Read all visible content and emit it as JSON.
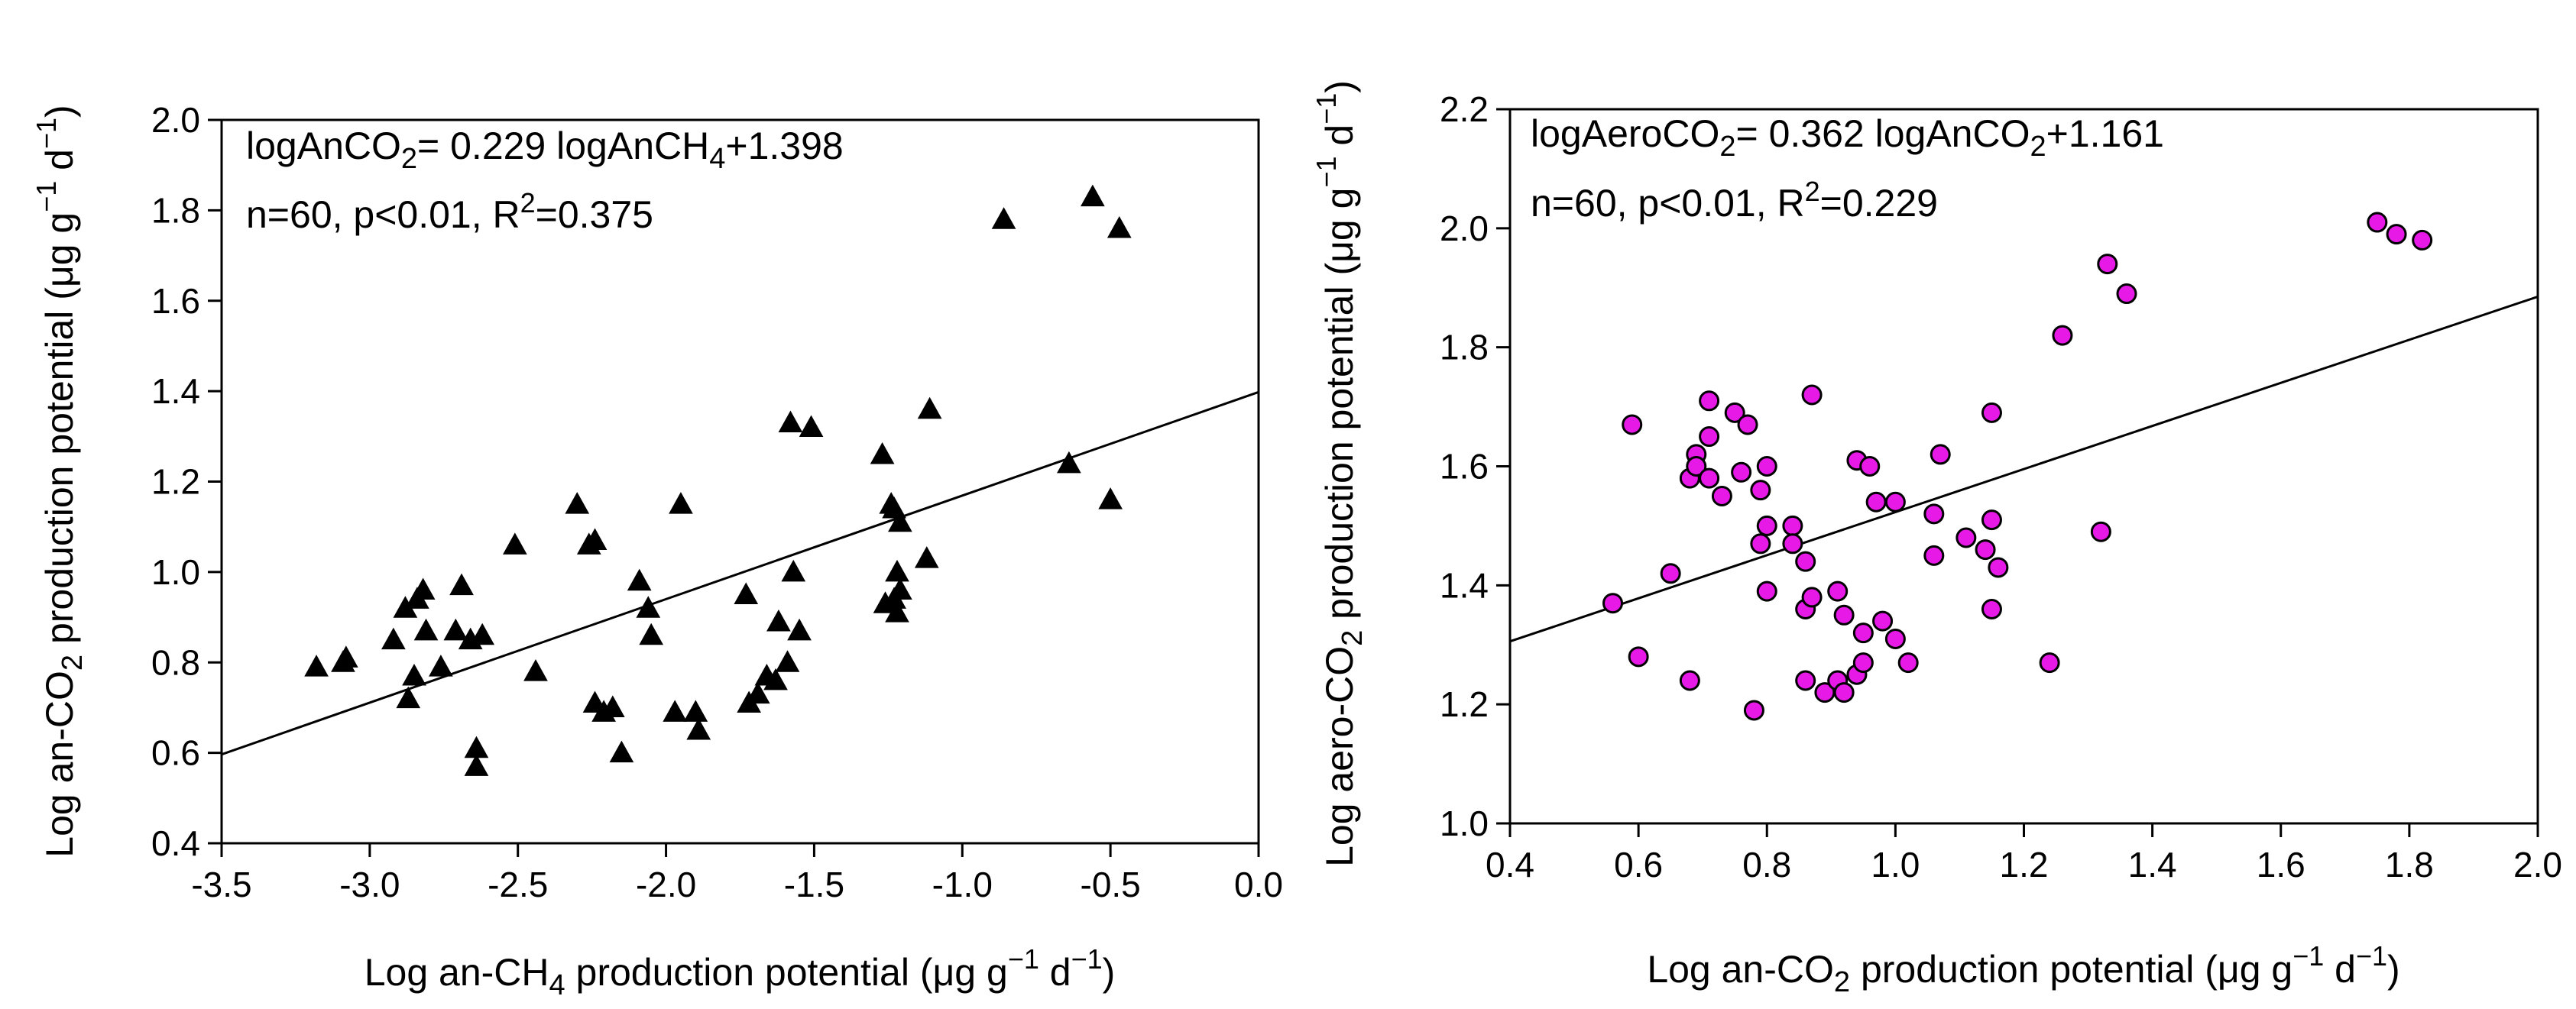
{
  "chart_data": [
    {
      "type": "scatter",
      "marker": "triangle",
      "marker_color": "#000000",
      "xlabel": "Log an-CH4 production potential (μg g−1 d−1)",
      "ylabel": "Log an-CO2 production potential (μg g−1 d−1)",
      "xlim": [
        -3.5,
        0.0
      ],
      "ylim": [
        0.4,
        2.0
      ],
      "x_ticks": [
        -3.5,
        -3.0,
        -2.5,
        -2.0,
        -1.5,
        -1.0,
        -0.5,
        0.0
      ],
      "y_ticks": [
        0.4,
        0.6,
        0.8,
        1.0,
        1.2,
        1.4,
        1.6,
        1.8,
        2.0
      ],
      "x_tick_labels": [
        "-3.5",
        "-3.0",
        "-2.5",
        "-2.0",
        "-1.5",
        "-1.0",
        "-0.5",
        "0.0"
      ],
      "y_tick_labels": [
        "0.4",
        "0.6",
        "0.8",
        "1.0",
        "1.2",
        "1.4",
        "1.6",
        "1.8",
        "2.0"
      ],
      "fit": {
        "slope": 0.229,
        "intercept": 1.398
      },
      "annotation": {
        "eq_lhs": "logAnCO",
        "eq_lhs_sub": "2",
        "eq_mid": "= 0.229 logAnCH",
        "eq_mid_sub": "4",
        "eq_rhs": "+1.398",
        "stats_text": "n=60, p<0.01, R",
        "stats_sup": "2",
        "stats_tail": "=0.375"
      },
      "points": [
        [
          -3.18,
          0.79
        ],
        [
          -3.09,
          0.8
        ],
        [
          -3.08,
          0.81
        ],
        [
          -2.92,
          0.85
        ],
        [
          -2.88,
          0.92
        ],
        [
          -2.87,
          0.72
        ],
        [
          -2.85,
          0.77
        ],
        [
          -2.84,
          0.94
        ],
        [
          -2.82,
          0.96
        ],
        [
          -2.81,
          0.87
        ],
        [
          -2.76,
          0.79
        ],
        [
          -2.71,
          0.87
        ],
        [
          -2.69,
          0.97
        ],
        [
          -2.66,
          0.85
        ],
        [
          -2.64,
          0.61
        ],
        [
          -2.64,
          0.57
        ],
        [
          -2.62,
          0.86
        ],
        [
          -2.51,
          1.06
        ],
        [
          -2.44,
          0.78
        ],
        [
          -2.3,
          1.15
        ],
        [
          -2.26,
          1.06
        ],
        [
          -2.24,
          1.07
        ],
        [
          -2.24,
          0.71
        ],
        [
          -2.21,
          0.69
        ],
        [
          -2.18,
          0.7
        ],
        [
          -2.15,
          0.6
        ],
        [
          -2.09,
          0.98
        ],
        [
          -2.06,
          0.92
        ],
        [
          -2.05,
          0.86
        ],
        [
          -1.95,
          1.15
        ],
        [
          -1.97,
          0.69
        ],
        [
          -1.9,
          0.69
        ],
        [
          -1.89,
          0.65
        ],
        [
          -1.73,
          0.95
        ],
        [
          -1.72,
          0.71
        ],
        [
          -1.69,
          0.73
        ],
        [
          -1.66,
          0.77
        ],
        [
          -1.63,
          0.76
        ],
        [
          -1.62,
          0.89
        ],
        [
          -1.59,
          0.8
        ],
        [
          -1.58,
          1.33
        ],
        [
          -1.57,
          1.0
        ],
        [
          -1.55,
          0.87
        ],
        [
          -1.51,
          1.32
        ],
        [
          -1.27,
          1.26
        ],
        [
          -1.26,
          0.93
        ],
        [
          -1.23,
          0.94
        ],
        [
          -1.23,
          1.14
        ],
        [
          -1.22,
          1.0
        ],
        [
          -1.22,
          0.91
        ],
        [
          -1.21,
          0.96
        ],
        [
          -1.21,
          1.11
        ],
        [
          -1.12,
          1.03
        ],
        [
          -1.11,
          1.36
        ],
        [
          -0.86,
          1.78
        ],
        [
          -0.64,
          1.24
        ],
        [
          -0.56,
          1.83
        ],
        [
          -0.5,
          1.16
        ],
        [
          -0.47,
          1.76
        ],
        [
          -1.24,
          1.15
        ]
      ]
    },
    {
      "type": "scatter",
      "marker": "circle",
      "marker_color": "#e619e6",
      "xlabel": "Log an-CO2 production potential (μg g−1 d−1)",
      "ylabel": "Log aero-CO2 production potential (μg g−1 d−1)",
      "xlim": [
        0.4,
        2.0
      ],
      "ylim": [
        1.0,
        2.2
      ],
      "x_ticks": [
        0.4,
        0.6,
        0.8,
        1.0,
        1.2,
        1.4,
        1.6,
        1.8,
        2.0
      ],
      "y_ticks": [
        1.0,
        1.2,
        1.4,
        1.6,
        1.8,
        2.0,
        2.2
      ],
      "x_tick_labels": [
        "0.4",
        "0.6",
        "0.8",
        "1.0",
        "1.2",
        "1.4",
        "1.6",
        "1.8",
        "2.0"
      ],
      "y_tick_labels": [
        "1.0",
        "1.2",
        "1.4",
        "1.6",
        "1.8",
        "2.0",
        "2.2"
      ],
      "fit": {
        "slope": 0.362,
        "intercept": 1.161
      },
      "annotation": {
        "eq_lhs": "logAeroCO",
        "eq_lhs_sub": "2",
        "eq_mid": "= 0.362 logAnCO",
        "eq_mid_sub": "2",
        "eq_rhs": "+1.161",
        "stats_text": "n=60, p<0.01, R",
        "stats_sup": "2",
        "stats_tail": "=0.229"
      },
      "points": [
        [
          0.56,
          1.37
        ],
        [
          0.59,
          1.67
        ],
        [
          0.6,
          1.28
        ],
        [
          0.65,
          1.42
        ],
        [
          0.68,
          1.24
        ],
        [
          0.68,
          1.58
        ],
        [
          0.69,
          1.62
        ],
        [
          0.69,
          1.6
        ],
        [
          0.71,
          1.71
        ],
        [
          0.71,
          1.65
        ],
        [
          0.71,
          1.58
        ],
        [
          0.73,
          1.55
        ],
        [
          0.75,
          1.69
        ],
        [
          0.76,
          1.59
        ],
        [
          0.77,
          1.67
        ],
        [
          0.78,
          1.19
        ],
        [
          0.79,
          1.56
        ],
        [
          0.79,
          1.47
        ],
        [
          0.8,
          1.5
        ],
        [
          0.8,
          1.6
        ],
        [
          0.8,
          1.39
        ],
        [
          0.84,
          1.5
        ],
        [
          0.84,
          1.47
        ],
        [
          0.86,
          1.36
        ],
        [
          0.86,
          1.24
        ],
        [
          0.86,
          1.44
        ],
        [
          0.87,
          1.38
        ],
        [
          0.87,
          1.72
        ],
        [
          0.89,
          1.22
        ],
        [
          0.91,
          1.39
        ],
        [
          0.91,
          1.24
        ],
        [
          0.92,
          1.35
        ],
        [
          0.92,
          1.22
        ],
        [
          0.94,
          1.25
        ],
        [
          0.94,
          1.61
        ],
        [
          0.95,
          1.32
        ],
        [
          0.95,
          1.27
        ],
        [
          0.96,
          1.6
        ],
        [
          0.97,
          1.54
        ],
        [
          0.98,
          1.34
        ],
        [
          1.0,
          1.31
        ],
        [
          1.0,
          1.54
        ],
        [
          1.02,
          1.27
        ],
        [
          1.06,
          1.52
        ],
        [
          1.06,
          1.45
        ],
        [
          1.07,
          1.62
        ],
        [
          1.11,
          1.48
        ],
        [
          1.14,
          1.46
        ],
        [
          1.15,
          1.51
        ],
        [
          1.15,
          1.36
        ],
        [
          1.16,
          1.43
        ],
        [
          1.15,
          1.69
        ],
        [
          1.24,
          1.27
        ],
        [
          1.26,
          1.82
        ],
        [
          1.32,
          1.49
        ],
        [
          1.33,
          1.94
        ],
        [
          1.36,
          1.89
        ],
        [
          1.75,
          2.01
        ],
        [
          1.78,
          1.99
        ],
        [
          1.82,
          1.98
        ]
      ]
    }
  ]
}
